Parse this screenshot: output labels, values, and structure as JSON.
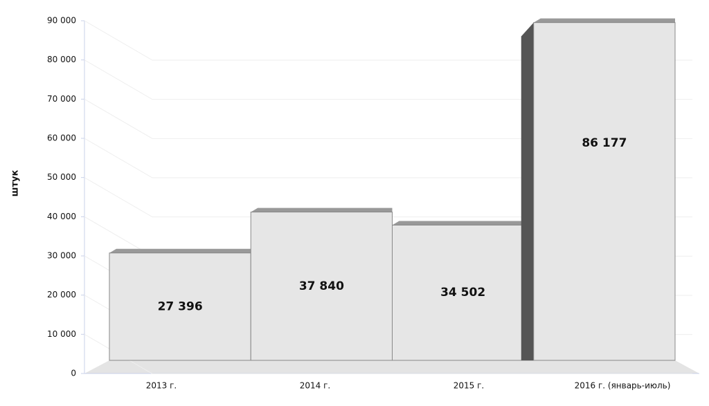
{
  "chart_data": {
    "type": "bar3d",
    "y_label": "штук",
    "categories": [
      "2013 г.",
      "2014 г.",
      "2015 г.",
      "2016 г. (январь-июль)"
    ],
    "values": [
      27396,
      37840,
      34502,
      86177
    ],
    "value_labels": [
      "27 396",
      "37 840",
      "34 502",
      "86 177"
    ],
    "color": "#e6e6e6",
    "ylim": [
      0,
      90000
    ],
    "yticks": [
      0,
      {
        "value": 10000,
        "label": "10 000"
      },
      {
        "value": 20000,
        "label": "20 000"
      },
      {
        "value": 30000,
        "label": "30 000"
      },
      {
        "value": 40000,
        "label": "40 000"
      },
      {
        "value": 50000,
        "label": "50 000"
      },
      {
        "value": 60000,
        "label": "60 000"
      },
      {
        "value": 70000,
        "label": "70 000"
      },
      {
        "value": 80000,
        "label": "80 000"
      },
      {
        "value": 90000,
        "label": "90 000"
      }
    ],
    "grid": true
  }
}
